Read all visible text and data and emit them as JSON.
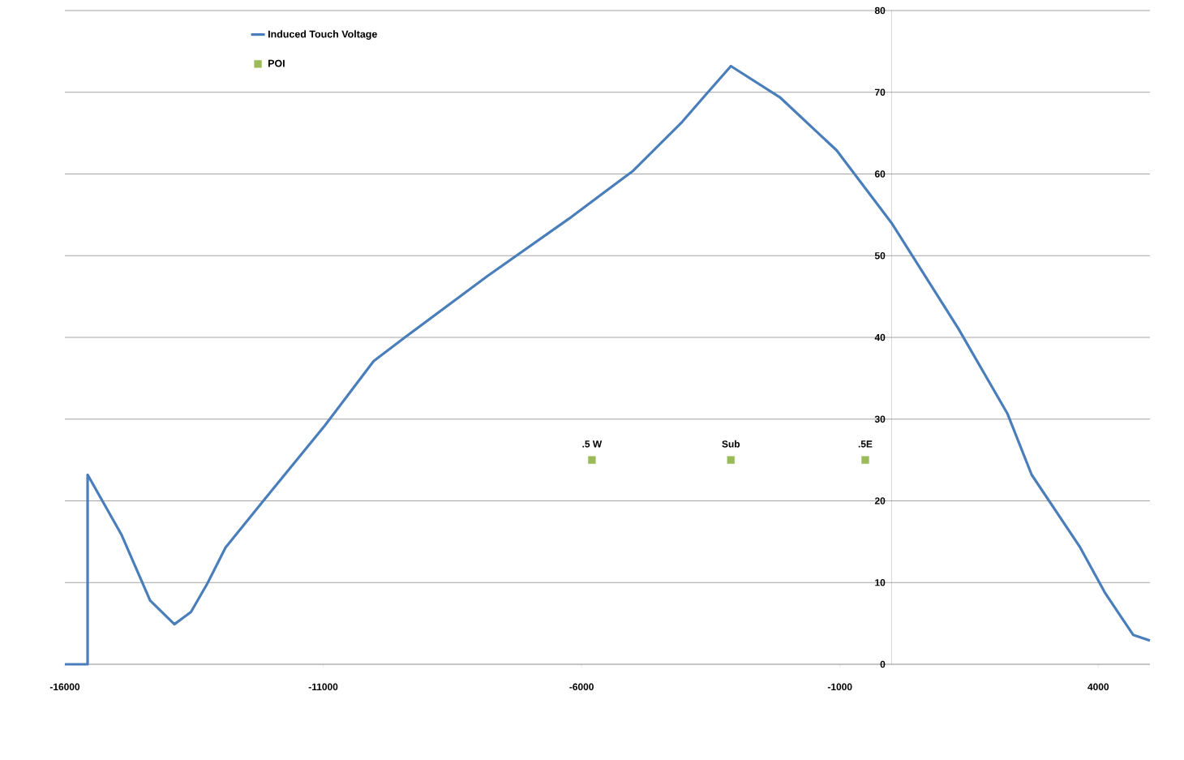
{
  "chart_data": {
    "type": "line",
    "series": [
      {
        "name": "Induced Touch Voltage",
        "color": "#4a7ebb",
        "marker": "none",
        "x": [
          -16000,
          -15560,
          -15560,
          -14900,
          -14350,
          -13880,
          -13560,
          -13250,
          -12890,
          -12070,
          -10970,
          -10025,
          -9400,
          -7825,
          -6250,
          -5000,
          -4050,
          -3610,
          -3110,
          -2165,
          -1065,
          0,
          1290,
          2240,
          2710,
          3650,
          4125,
          4675,
          5000
        ],
        "values": [
          0,
          0,
          23.2,
          15.8,
          7.8,
          4.9,
          6.4,
          9.8,
          14.3,
          20.7,
          29.2,
          37.1,
          40.1,
          47.5,
          54.5,
          60.4,
          66.4,
          69.6,
          73.2,
          69.4,
          62.9,
          54.0,
          41.1,
          30.7,
          23.2,
          14.3,
          8.8,
          3.6,
          2.9
        ]
      },
      {
        "name": "POI",
        "type": "scatter",
        "color": "#9bbb59",
        "marker": "square",
        "x": [
          -5800,
          -3110,
          -510
        ],
        "values": [
          25,
          25,
          25
        ]
      }
    ],
    "annotations": [
      {
        "text": ".5 W",
        "x": -5800,
        "y": 25
      },
      {
        "text": "Sub",
        "x": -3110,
        "y": 25
      },
      {
        "text": ".5E",
        "x": -510,
        "y": 25
      }
    ],
    "xlim": [
      -16000,
      5000
    ],
    "xticks": [
      -16000,
      -11000,
      -6000,
      -1000,
      4000
    ],
    "ylim": [
      0,
      80
    ],
    "yticks": [
      0,
      10,
      20,
      30,
      40,
      50,
      60,
      70,
      80
    ],
    "grid": "y",
    "legend": "top left"
  }
}
